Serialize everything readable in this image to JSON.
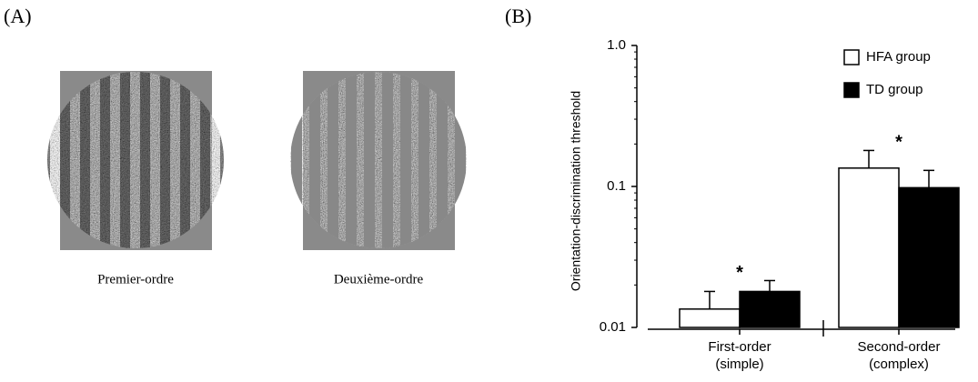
{
  "panel_a": {
    "label": "(A)",
    "images": [
      {
        "caption": "Premier-ordre"
      },
      {
        "caption": "Deuxième-ordre"
      }
    ]
  },
  "chart_data": {
    "type": "bar",
    "panel_label": "(B)",
    "y_label": "Orientation-discrimination threshold",
    "categories": [
      "First-order\n(simple)",
      "Second-order\n(complex)"
    ],
    "series": [
      {
        "name": "HFA group",
        "color": "#ffffff",
        "values": [
          0.0135,
          0.135
        ],
        "errors": [
          0.0045,
          0.045
        ]
      },
      {
        "name": "TD group",
        "color": "#000000",
        "values": [
          0.018,
          0.098
        ],
        "errors": [
          0.0035,
          0.032
        ]
      }
    ],
    "annotations": [
      "*",
      "*"
    ],
    "log_scale": true,
    "ylim": [
      0.01,
      1
    ],
    "yticks": [
      0.01,
      0.1,
      {
        "value": 1,
        "label": "1.0"
      }
    ],
    "legend": "top-right"
  }
}
